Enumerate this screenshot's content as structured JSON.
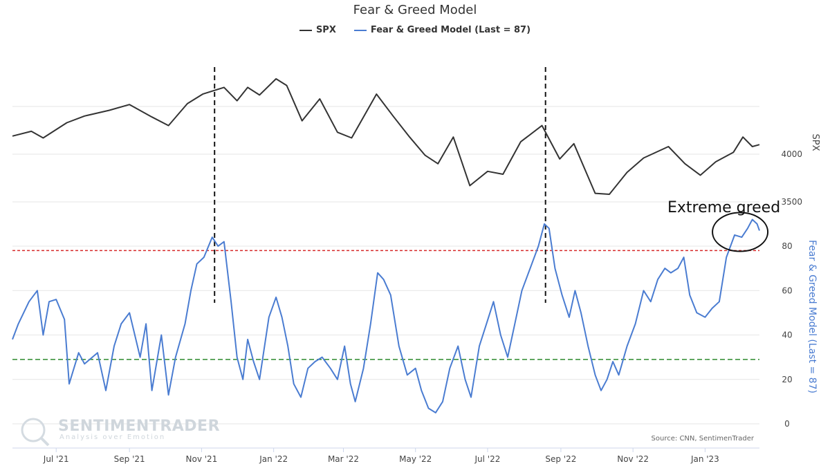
{
  "chart_data": {
    "type": "line",
    "title": "Fear & Greed Model",
    "source": "Source: CNN, SentimenTrader",
    "watermark": {
      "name": "SENTIMENTRADER",
      "tagline": "Analysis over Emotion"
    },
    "x_ticks": [
      "Jul '21",
      "Sep '21",
      "Nov '21",
      "Jan '22",
      "Mar '22",
      "May '22",
      "Jul '22",
      "Sep '22",
      "Nov '22",
      "Jan '23"
    ],
    "x_range": [
      "2021-05-25",
      "2023-02-16"
    ],
    "series": [
      {
        "name": "SPX",
        "color": "#333333",
        "axis": "SPX",
        "points": [
          [
            "2021-05-25",
            4190
          ],
          [
            "2021-06-10",
            4240
          ],
          [
            "2021-06-20",
            4170
          ],
          [
            "2021-07-10",
            4330
          ],
          [
            "2021-07-25",
            4400
          ],
          [
            "2021-08-15",
            4460
          ],
          [
            "2021-09-01",
            4520
          ],
          [
            "2021-09-20",
            4390
          ],
          [
            "2021-10-04",
            4300
          ],
          [
            "2021-10-20",
            4530
          ],
          [
            "2021-11-02",
            4630
          ],
          [
            "2021-11-20",
            4700
          ],
          [
            "2021-12-01",
            4560
          ],
          [
            "2021-12-10",
            4700
          ],
          [
            "2021-12-20",
            4620
          ],
          [
            "2022-01-03",
            4790
          ],
          [
            "2022-01-12",
            4720
          ],
          [
            "2022-01-25",
            4350
          ],
          [
            "2022-02-09",
            4580
          ],
          [
            "2022-02-24",
            4230
          ],
          [
            "2022-03-08",
            4170
          ],
          [
            "2022-03-29",
            4630
          ],
          [
            "2022-04-12",
            4400
          ],
          [
            "2022-04-26",
            4180
          ],
          [
            "2022-05-09",
            3990
          ],
          [
            "2022-05-20",
            3900
          ],
          [
            "2022-06-02",
            4180
          ],
          [
            "2022-06-16",
            3670
          ],
          [
            "2022-07-01",
            3820
          ],
          [
            "2022-07-14",
            3790
          ],
          [
            "2022-07-29",
            4130
          ],
          [
            "2022-08-16",
            4300
          ],
          [
            "2022-08-31",
            3950
          ],
          [
            "2022-09-12",
            4110
          ],
          [
            "2022-09-30",
            3590
          ],
          [
            "2022-10-12",
            3580
          ],
          [
            "2022-10-27",
            3810
          ],
          [
            "2022-11-10",
            3960
          ],
          [
            "2022-12-01",
            4080
          ],
          [
            "2022-12-15",
            3900
          ],
          [
            "2022-12-28",
            3780
          ],
          [
            "2023-01-10",
            3920
          ],
          [
            "2023-01-25",
            4020
          ],
          [
            "2023-02-02",
            4180
          ],
          [
            "2023-02-10",
            4080
          ],
          [
            "2023-02-16",
            4100
          ]
        ]
      },
      {
        "name": "Fear & Greed Model (Last = 87)",
        "color": "#4a7cd1",
        "axis": "F&G",
        "points": [
          [
            "2021-05-25",
            38
          ],
          [
            "2021-05-30",
            45
          ],
          [
            "2021-06-08",
            55
          ],
          [
            "2021-06-15",
            60
          ],
          [
            "2021-06-20",
            40
          ],
          [
            "2021-06-25",
            55
          ],
          [
            "2021-07-01",
            56
          ],
          [
            "2021-07-08",
            47
          ],
          [
            "2021-07-12",
            18
          ],
          [
            "2021-07-20",
            32
          ],
          [
            "2021-07-25",
            27
          ],
          [
            "2021-08-05",
            32
          ],
          [
            "2021-08-12",
            15
          ],
          [
            "2021-08-19",
            35
          ],
          [
            "2021-08-25",
            45
          ],
          [
            "2021-09-01",
            50
          ],
          [
            "2021-09-10",
            30
          ],
          [
            "2021-09-15",
            45
          ],
          [
            "2021-09-20",
            15
          ],
          [
            "2021-09-28",
            40
          ],
          [
            "2021-10-04",
            13
          ],
          [
            "2021-10-10",
            30
          ],
          [
            "2021-10-18",
            45
          ],
          [
            "2021-10-23",
            60
          ],
          [
            "2021-10-28",
            72
          ],
          [
            "2021-11-03",
            75
          ],
          [
            "2021-11-10",
            84
          ],
          [
            "2021-11-15",
            80
          ],
          [
            "2021-11-20",
            82
          ],
          [
            "2021-11-26",
            55
          ],
          [
            "2021-12-01",
            30
          ],
          [
            "2021-12-06",
            20
          ],
          [
            "2021-12-10",
            38
          ],
          [
            "2021-12-15",
            28
          ],
          [
            "2021-12-20",
            20
          ],
          [
            "2021-12-28",
            48
          ],
          [
            "2022-01-03",
            57
          ],
          [
            "2022-01-08",
            48
          ],
          [
            "2022-01-13",
            35
          ],
          [
            "2022-01-18",
            18
          ],
          [
            "2022-01-24",
            12
          ],
          [
            "2022-01-30",
            25
          ],
          [
            "2022-02-05",
            28
          ],
          [
            "2022-02-11",
            30
          ],
          [
            "2022-02-18",
            25
          ],
          [
            "2022-02-24",
            20
          ],
          [
            "2022-03-02",
            35
          ],
          [
            "2022-03-07",
            18
          ],
          [
            "2022-03-11",
            10
          ],
          [
            "2022-03-18",
            25
          ],
          [
            "2022-03-24",
            45
          ],
          [
            "2022-03-30",
            68
          ],
          [
            "2022-04-04",
            65
          ],
          [
            "2022-04-10",
            58
          ],
          [
            "2022-04-17",
            35
          ],
          [
            "2022-04-24",
            22
          ],
          [
            "2022-05-01",
            25
          ],
          [
            "2022-05-06",
            15
          ],
          [
            "2022-05-12",
            7
          ],
          [
            "2022-05-18",
            5
          ],
          [
            "2022-05-24",
            10
          ],
          [
            "2022-05-30",
            25
          ],
          [
            "2022-06-06",
            35
          ],
          [
            "2022-06-12",
            20
          ],
          [
            "2022-06-17",
            12
          ],
          [
            "2022-06-24",
            35
          ],
          [
            "2022-06-30",
            45
          ],
          [
            "2022-07-06",
            55
          ],
          [
            "2022-07-12",
            40
          ],
          [
            "2022-07-18",
            30
          ],
          [
            "2022-07-24",
            45
          ],
          [
            "2022-07-30",
            60
          ],
          [
            "2022-08-06",
            70
          ],
          [
            "2022-08-13",
            80
          ],
          [
            "2022-08-18",
            90
          ],
          [
            "2022-08-22",
            88
          ],
          [
            "2022-08-27",
            70
          ],
          [
            "2022-09-02",
            58
          ],
          [
            "2022-09-08",
            48
          ],
          [
            "2022-09-13",
            60
          ],
          [
            "2022-09-18",
            50
          ],
          [
            "2022-09-24",
            35
          ],
          [
            "2022-09-30",
            22
          ],
          [
            "2022-10-05",
            15
          ],
          [
            "2022-10-10",
            20
          ],
          [
            "2022-10-15",
            28
          ],
          [
            "2022-10-20",
            22
          ],
          [
            "2022-10-27",
            35
          ],
          [
            "2022-11-03",
            45
          ],
          [
            "2022-11-10",
            60
          ],
          [
            "2022-11-16",
            55
          ],
          [
            "2022-11-22",
            65
          ],
          [
            "2022-11-28",
            70
          ],
          [
            "2022-12-03",
            68
          ],
          [
            "2022-12-09",
            70
          ],
          [
            "2022-12-14",
            75
          ],
          [
            "2022-12-19",
            58
          ],
          [
            "2022-12-25",
            50
          ],
          [
            "2023-01-01",
            48
          ],
          [
            "2023-01-07",
            52
          ],
          [
            "2023-01-13",
            55
          ],
          [
            "2023-01-19",
            75
          ],
          [
            "2023-01-26",
            85
          ],
          [
            "2023-02-01",
            84
          ],
          [
            "2023-02-06",
            88
          ],
          [
            "2023-02-10",
            92
          ],
          [
            "2023-02-14",
            90
          ],
          [
            "2023-02-16",
            87
          ]
        ]
      }
    ],
    "right_axis_spx": {
      "label": "SPX",
      "ticks": [
        3500,
        4000
      ],
      "range": [
        3400,
        5600
      ]
    },
    "right_axis_fg": {
      "label": "Fear & Greed Model (Last = 87)",
      "ticks": [
        0,
        20,
        40,
        60,
        80
      ],
      "range": [
        0,
        100
      ]
    },
    "reference_lines": [
      {
        "axis": "F&G",
        "value": 78,
        "color": "#d62728",
        "style": "dashed"
      },
      {
        "axis": "F&G",
        "value": 29,
        "color": "#2c8a2c",
        "style": "dashed"
      }
    ],
    "event_lines": [
      "2021-11-12",
      "2022-08-19"
    ],
    "annotation": {
      "text": "Extreme greed",
      "target_date": "2023-02-02",
      "target_value": 87
    },
    "grid": true
  }
}
